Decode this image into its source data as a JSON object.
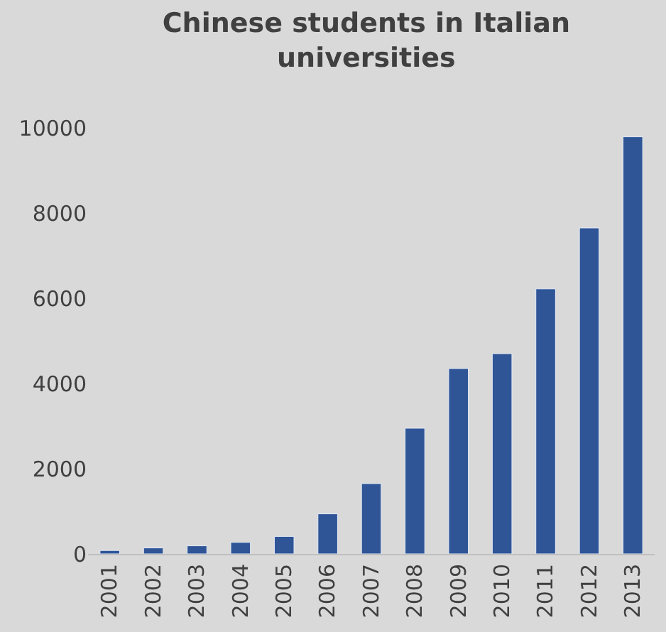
{
  "chart_data": {
    "type": "bar",
    "title": "Chinese students in Italian universities",
    "categories": [
      "2001",
      "2002",
      "2003",
      "2004",
      "2005",
      "2006",
      "2007",
      "2008",
      "2009",
      "2010",
      "2011",
      "2012",
      "2013"
    ],
    "series": [
      {
        "color": "#2f5597",
        "values": [
          80,
          140,
          190,
          270,
          410,
          940,
          1650,
          2950,
          4350,
          4700,
          6220,
          7650,
          9790
        ]
      }
    ],
    "ylim": [
      0,
      10000
    ],
    "yticks": [
      0,
      2000,
      4000,
      6000,
      8000,
      10000
    ],
    "grid": false,
    "legend": false
  }
}
